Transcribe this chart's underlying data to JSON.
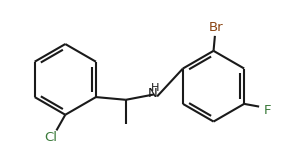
{
  "background_color": "#ffffff",
  "line_color": "#1a1a1a",
  "atom_colors": {
    "Br": "#8B4513",
    "Cl": "#3a7a3a",
    "F": "#3a7a3a",
    "N": "#1a1a1a",
    "H": "#1a1a1a",
    "C": "#1a1a1a"
  },
  "line_width": 1.5,
  "font_size": 9.5,
  "fig_width": 2.87,
  "fig_height": 1.52,
  "dpi": 100
}
